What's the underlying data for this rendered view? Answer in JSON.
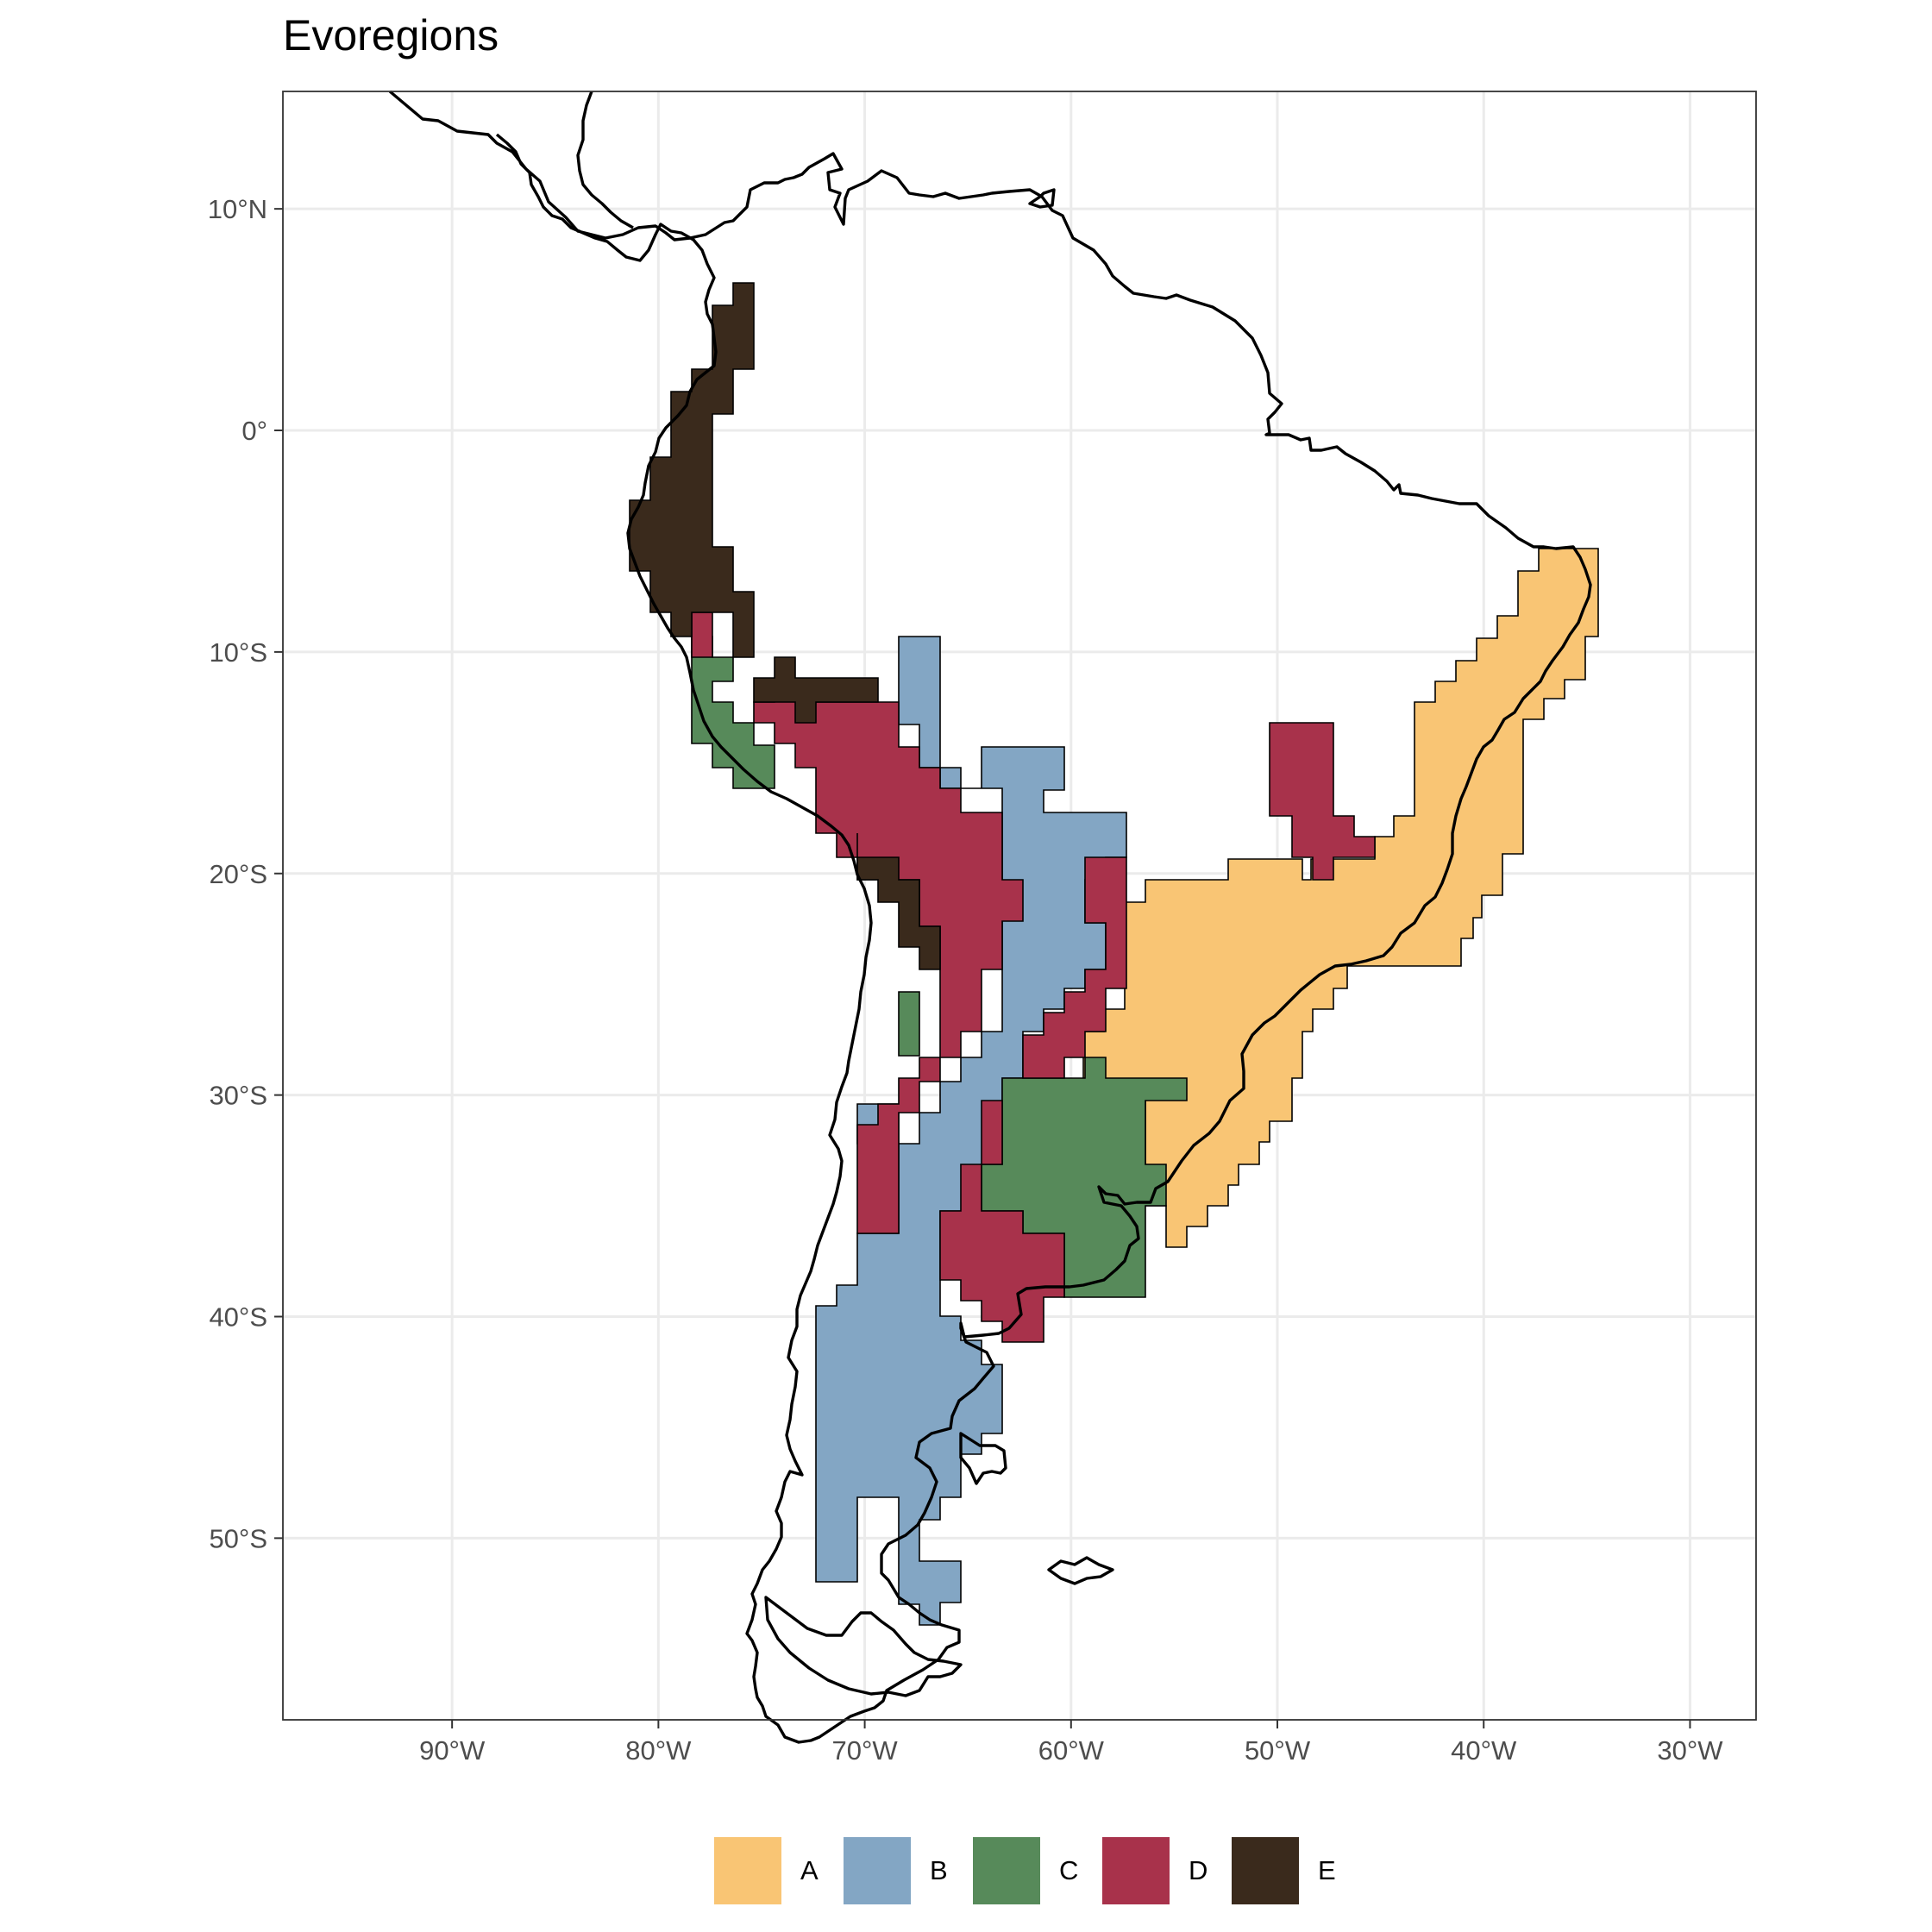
{
  "title": "Evoregions",
  "x_ticks": [
    {
      "value": -90,
      "label": "90°W"
    },
    {
      "value": -80,
      "label": "80°W"
    },
    {
      "value": -70,
      "label": "70°W"
    },
    {
      "value": -60,
      "label": "60°W"
    },
    {
      "value": -50,
      "label": "50°W"
    },
    {
      "value": -40,
      "label": "40°W"
    },
    {
      "value": -30,
      "label": "30°W"
    }
  ],
  "y_ticks": [
    {
      "value": 10,
      "label": "10°N"
    },
    {
      "value": 0,
      "label": "0°"
    },
    {
      "value": -10,
      "label": "10°S"
    },
    {
      "value": -20,
      "label": "20°S"
    },
    {
      "value": -30,
      "label": "30°S"
    },
    {
      "value": -40,
      "label": "40°S"
    },
    {
      "value": -50,
      "label": "50°S"
    }
  ],
  "legend": [
    {
      "label": "A",
      "color": "#F9C574"
    },
    {
      "label": "B",
      "color": "#83A6C4"
    },
    {
      "label": "C",
      "color": "#578A5A"
    },
    {
      "label": "D",
      "color": "#A8324B"
    },
    {
      "label": "E",
      "color": "#3A2A1C"
    }
  ],
  "extent": {
    "lon": [
      -98.2,
      -26.8
    ],
    "lat": [
      -58.2,
      15.3
    ]
  }
}
